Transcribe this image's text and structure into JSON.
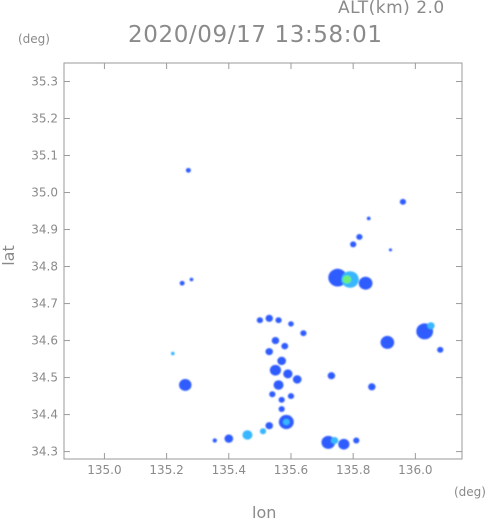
{
  "header": {
    "altitude_label": "ALT(km)  2.0",
    "timestamp": "2020/09/17 13:58:01"
  },
  "axes": {
    "y_unit": "(deg)",
    "x_unit": "(deg)",
    "y_label": "lat",
    "x_label": "lon"
  },
  "chart_data": {
    "type": "scatter",
    "xlim": [
      134.87,
      136.15
    ],
    "ylim": [
      34.28,
      35.35
    ],
    "x_ticks": [
      "135.0",
      "135.2",
      "135.4",
      "135.6",
      "135.8",
      "136.0"
    ],
    "x_tick_values": [
      135.0,
      135.2,
      135.4,
      135.6,
      135.8,
      136.0
    ],
    "y_ticks": [
      "34.3",
      "34.4",
      "34.5",
      "34.6",
      "34.7",
      "34.8",
      "34.9",
      "35.0",
      "35.1",
      "35.2",
      "35.3"
    ],
    "y_tick_values": [
      34.3,
      34.4,
      34.5,
      34.6,
      34.7,
      34.8,
      34.9,
      35.0,
      35.1,
      35.2,
      35.3
    ],
    "echo_colors": {
      "weak": "#2d5bff",
      "moderate": "#37b6ff",
      "strong": "#6bf07a"
    },
    "echoes": [
      {
        "lon": 135.27,
        "lat": 35.06,
        "size": 0.008,
        "level": "weak"
      },
      {
        "lon": 135.25,
        "lat": 34.755,
        "size": 0.008,
        "level": "weak"
      },
      {
        "lon": 135.28,
        "lat": 34.765,
        "size": 0.006,
        "level": "weak"
      },
      {
        "lon": 135.96,
        "lat": 34.975,
        "size": 0.01,
        "level": "weak"
      },
      {
        "lon": 135.85,
        "lat": 34.93,
        "size": 0.006,
        "level": "weak"
      },
      {
        "lon": 135.82,
        "lat": 34.88,
        "size": 0.01,
        "level": "weak"
      },
      {
        "lon": 135.8,
        "lat": 34.86,
        "size": 0.01,
        "level": "weak"
      },
      {
        "lon": 135.92,
        "lat": 34.845,
        "size": 0.005,
        "level": "weak"
      },
      {
        "lon": 135.75,
        "lat": 34.77,
        "size": 0.03,
        "level": "weak"
      },
      {
        "lon": 135.79,
        "lat": 34.765,
        "size": 0.028,
        "level": "moderate"
      },
      {
        "lon": 135.78,
        "lat": 34.765,
        "size": 0.014,
        "level": "strong"
      },
      {
        "lon": 135.84,
        "lat": 34.755,
        "size": 0.022,
        "level": "weak"
      },
      {
        "lon": 135.91,
        "lat": 34.595,
        "size": 0.022,
        "level": "weak"
      },
      {
        "lon": 136.03,
        "lat": 34.625,
        "size": 0.027,
        "level": "weak"
      },
      {
        "lon": 136.05,
        "lat": 34.64,
        "size": 0.012,
        "level": "moderate"
      },
      {
        "lon": 136.08,
        "lat": 34.575,
        "size": 0.01,
        "level": "weak"
      },
      {
        "lon": 135.86,
        "lat": 34.475,
        "size": 0.012,
        "level": "weak"
      },
      {
        "lon": 135.73,
        "lat": 34.505,
        "size": 0.012,
        "level": "weak"
      },
      {
        "lon": 135.64,
        "lat": 34.62,
        "size": 0.01,
        "level": "weak"
      },
      {
        "lon": 135.5,
        "lat": 34.655,
        "size": 0.01,
        "level": "weak"
      },
      {
        "lon": 135.53,
        "lat": 34.66,
        "size": 0.012,
        "level": "weak"
      },
      {
        "lon": 135.56,
        "lat": 34.655,
        "size": 0.01,
        "level": "weak"
      },
      {
        "lon": 135.6,
        "lat": 34.645,
        "size": 0.009,
        "level": "weak"
      },
      {
        "lon": 135.55,
        "lat": 34.6,
        "size": 0.012,
        "level": "weak"
      },
      {
        "lon": 135.58,
        "lat": 34.585,
        "size": 0.011,
        "level": "weak"
      },
      {
        "lon": 135.53,
        "lat": 34.57,
        "size": 0.012,
        "level": "weak"
      },
      {
        "lon": 135.57,
        "lat": 34.545,
        "size": 0.014,
        "level": "weak"
      },
      {
        "lon": 135.55,
        "lat": 34.52,
        "size": 0.018,
        "level": "weak"
      },
      {
        "lon": 135.59,
        "lat": 34.51,
        "size": 0.015,
        "level": "weak"
      },
      {
        "lon": 135.62,
        "lat": 34.495,
        "size": 0.014,
        "level": "weak"
      },
      {
        "lon": 135.56,
        "lat": 34.48,
        "size": 0.016,
        "level": "weak"
      },
      {
        "lon": 135.54,
        "lat": 34.455,
        "size": 0.01,
        "level": "weak"
      },
      {
        "lon": 135.57,
        "lat": 34.44,
        "size": 0.01,
        "level": "weak"
      },
      {
        "lon": 135.6,
        "lat": 34.45,
        "size": 0.01,
        "level": "weak"
      },
      {
        "lon": 135.57,
        "lat": 34.415,
        "size": 0.01,
        "level": "weak"
      },
      {
        "lon": 135.26,
        "lat": 34.48,
        "size": 0.02,
        "level": "weak"
      },
      {
        "lon": 135.22,
        "lat": 34.565,
        "size": 0.006,
        "level": "moderate"
      },
      {
        "lon": 135.585,
        "lat": 34.38,
        "size": 0.024,
        "level": "weak"
      },
      {
        "lon": 135.585,
        "lat": 34.38,
        "size": 0.011,
        "level": "moderate"
      },
      {
        "lon": 135.53,
        "lat": 34.37,
        "size": 0.012,
        "level": "weak"
      },
      {
        "lon": 135.46,
        "lat": 34.345,
        "size": 0.016,
        "level": "moderate"
      },
      {
        "lon": 135.4,
        "lat": 34.335,
        "size": 0.014,
        "level": "weak"
      },
      {
        "lon": 135.355,
        "lat": 34.33,
        "size": 0.007,
        "level": "weak"
      },
      {
        "lon": 135.51,
        "lat": 34.355,
        "size": 0.01,
        "level": "moderate"
      },
      {
        "lon": 135.72,
        "lat": 34.325,
        "size": 0.022,
        "level": "weak"
      },
      {
        "lon": 135.74,
        "lat": 34.33,
        "size": 0.012,
        "level": "moderate"
      },
      {
        "lon": 135.77,
        "lat": 34.32,
        "size": 0.018,
        "level": "weak"
      },
      {
        "lon": 135.81,
        "lat": 34.33,
        "size": 0.01,
        "level": "weak"
      }
    ]
  }
}
